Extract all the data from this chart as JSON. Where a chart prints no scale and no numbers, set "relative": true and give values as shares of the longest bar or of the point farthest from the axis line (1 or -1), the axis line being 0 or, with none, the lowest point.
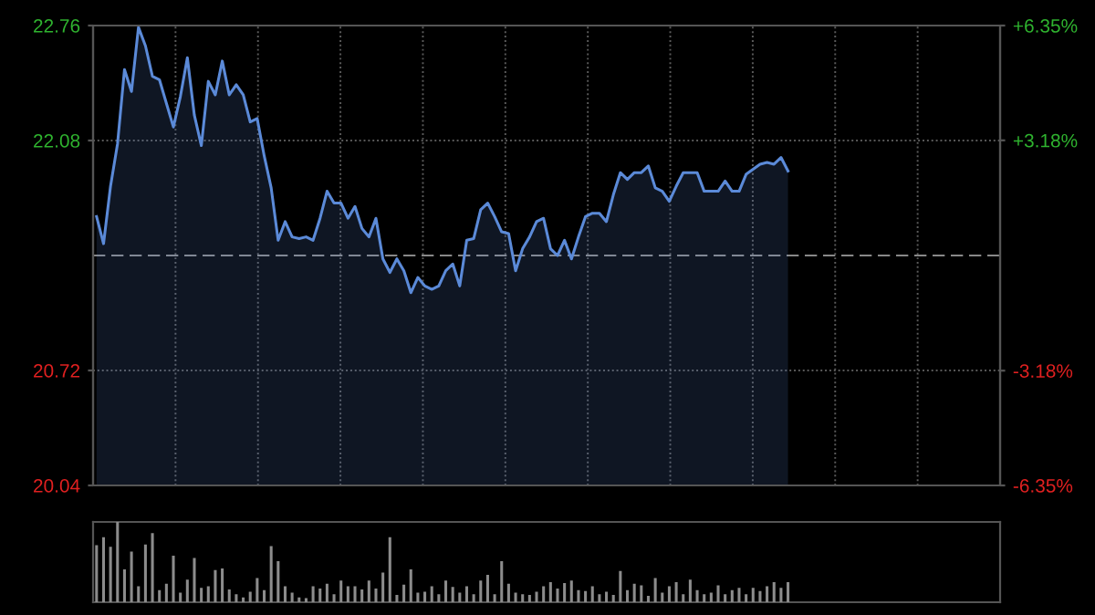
{
  "chart_data": [
    {
      "type": "area",
      "color": "#5b8ad8",
      "ylim": [
        20.04,
        22.76
      ],
      "y2lim": [
        -6.35,
        6.35
      ],
      "categories": [
        null,
        null,
        null,
        null,
        null,
        null,
        null,
        null,
        null,
        null,
        null,
        null,
        null,
        null,
        null,
        null,
        null,
        null,
        null,
        null,
        null,
        null,
        null,
        null,
        null,
        null,
        null,
        null,
        null,
        null,
        null,
        null,
        null,
        null,
        null,
        null,
        null,
        null,
        null,
        null,
        null,
        null,
        null,
        null,
        null,
        null,
        null,
        null,
        null,
        null,
        null,
        null,
        null,
        null,
        null,
        null,
        null,
        null,
        null,
        null,
        null,
        null,
        null,
        null,
        null,
        null,
        null,
        null,
        null,
        null,
        null,
        null,
        null,
        null,
        null,
        null,
        null,
        null,
        null,
        null,
        null,
        null,
        null,
        null,
        null,
        null,
        null,
        null,
        null,
        null,
        null,
        null,
        null,
        null,
        null,
        null,
        null,
        null,
        null,
        null
      ],
      "yticks": [
        20.04,
        20.72,
        22.08,
        22.76
      ],
      "y2ticks": [
        {
          "value": -6.35,
          "label": "-6.35%"
        },
        {
          "value": -3.18,
          "label": "-3.18%"
        },
        {
          "value": 3.18,
          "label": "+3.18%"
        },
        {
          "value": 6.35,
          "label": "+6.35%"
        }
      ],
      "grid": true,
      "ref_lines": [
        {
          "axis": "y",
          "value": 21.4,
          "line_style": "dashed",
          "color": "#888888"
        }
      ],
      "values": [
        21.63,
        21.47,
        21.81,
        22.06,
        22.5,
        22.37,
        22.75,
        22.64,
        22.46,
        22.44,
        22.3,
        22.16,
        22.34,
        22.57,
        22.23,
        22.05,
        22.43,
        22.35,
        22.55,
        22.35,
        22.41,
        22.35,
        22.19,
        22.21,
        21.99,
        21.8,
        21.49,
        21.6,
        21.51,
        21.5,
        21.51,
        21.49,
        21.62,
        21.78,
        21.71,
        21.71,
        21.62,
        21.69,
        21.56,
        21.51,
        21.62,
        21.38,
        21.3,
        21.38,
        21.31,
        21.18,
        21.27,
        21.22,
        21.2,
        21.22,
        21.31,
        21.35,
        21.22,
        21.49,
        21.5,
        21.67,
        21.71,
        21.63,
        21.54,
        21.53,
        21.31,
        21.44,
        21.51,
        21.6,
        21.62,
        21.44,
        21.4,
        21.49,
        21.38,
        21.51,
        21.63,
        21.65,
        21.65,
        21.6,
        21.76,
        21.89,
        21.85,
        21.89,
        21.89,
        21.93,
        21.8,
        21.78,
        21.72,
        21.81,
        21.89,
        21.89,
        21.89,
        21.78,
        21.78,
        21.78,
        21.84,
        21.78,
        21.78,
        21.88,
        21.91,
        21.94,
        21.95,
        21.94,
        21.98,
        21.9
      ]
    },
    {
      "type": "bar",
      "relative": true,
      "color": "#8c8c8c",
      "categories": [
        null,
        null,
        null,
        null,
        null,
        null,
        null,
        null,
        null,
        null,
        null,
        null,
        null,
        null,
        null,
        null,
        null,
        null,
        null,
        null,
        null,
        null,
        null,
        null,
        null,
        null,
        null,
        null,
        null,
        null,
        null,
        null,
        null,
        null,
        null,
        null,
        null,
        null,
        null,
        null,
        null,
        null,
        null,
        null,
        null,
        null,
        null,
        null,
        null,
        null,
        null,
        null,
        null,
        null,
        null,
        null,
        null,
        null,
        null,
        null,
        null,
        null,
        null,
        null,
        null,
        null,
        null,
        null,
        null,
        null,
        null,
        null,
        null,
        null,
        null,
        null,
        null,
        null,
        null,
        null,
        null,
        null,
        null,
        null,
        null,
        null,
        null,
        null,
        null,
        null,
        null,
        null,
        null,
        null,
        null,
        null,
        null,
        null,
        null,
        null
      ],
      "values": [
        0.71,
        0.81,
        0.69,
        1.0,
        0.41,
        0.63,
        0.2,
        0.72,
        0.86,
        0.15,
        0.23,
        0.58,
        0.12,
        0.28,
        0.55,
        0.18,
        0.2,
        0.4,
        0.42,
        0.16,
        0.1,
        0.06,
        0.13,
        0.3,
        0.15,
        0.7,
        0.51,
        0.2,
        0.12,
        0.06,
        0.05,
        0.2,
        0.17,
        0.23,
        0.1,
        0.27,
        0.2,
        0.2,
        0.16,
        0.27,
        0.17,
        0.37,
        0.81,
        0.09,
        0.22,
        0.41,
        0.12,
        0.13,
        0.2,
        0.1,
        0.27,
        0.19,
        0.12,
        0.2,
        0.1,
        0.27,
        0.34,
        0.1,
        0.51,
        0.23,
        0.12,
        0.1,
        0.09,
        0.13,
        0.2,
        0.25,
        0.17,
        0.24,
        0.27,
        0.15,
        0.14,
        0.2,
        0.1,
        0.13,
        0.09,
        0.39,
        0.15,
        0.23,
        0.21,
        0.08,
        0.3,
        0.12,
        0.2,
        0.25,
        0.1,
        0.28,
        0.15,
        0.1,
        0.12,
        0.21,
        0.1,
        0.15,
        0.18,
        0.1,
        0.18,
        0.14,
        0.2,
        0.25,
        0.18,
        0.25
      ]
    }
  ]
}
